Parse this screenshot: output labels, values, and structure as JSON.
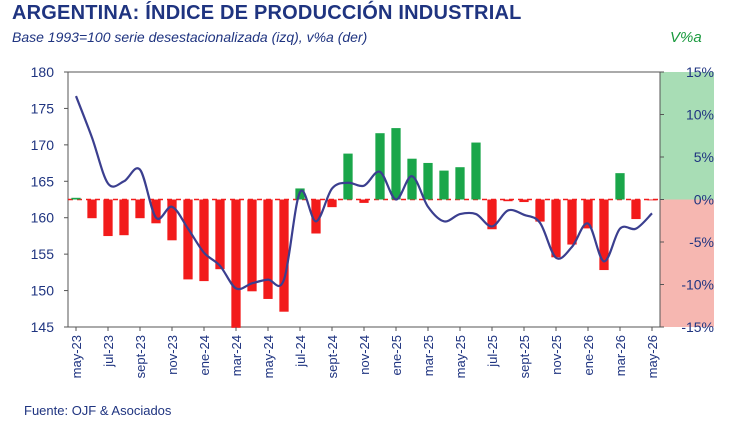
{
  "header": {
    "title": "ARGENTINA: ÍNDICE DE PRODUCCIÓN INDUSTRIAL",
    "subtitle": "Base 1993=100 serie desestacionalizada (izq), v%a (der)",
    "right_axis_label": "V%a"
  },
  "footer": {
    "source": "Fuente: OJF & Asociados"
  },
  "colors": {
    "text": "#1f3480",
    "line": "#3b3f8f",
    "bar_positive": "#1aa64a",
    "bar_negative": "#f21b1b",
    "band_positive": "#a8ddb5",
    "band_negative": "#f6b7b1"
  },
  "chart_data": {
    "type": "bar+line",
    "x_tick_labels": [
      "may-23",
      "jul-23",
      "sept-23",
      "nov-23",
      "ene-24",
      "mar-24",
      "may-24",
      "jul-24",
      "sept-24",
      "nov-24",
      "ene-25",
      "mar-25",
      "may-25",
      "jul-25",
      "sept-25",
      "nov-25",
      "ene-26",
      "mar-26",
      "may-26"
    ],
    "months": [
      "may-23",
      "jun-23",
      "jul-23",
      "ago-23",
      "sept-23",
      "oct-23",
      "nov-23",
      "dic-23",
      "ene-24",
      "feb-24",
      "mar-24",
      "abr-24",
      "may-24",
      "jun-24",
      "jul-24",
      "ago-24",
      "sept-24",
      "oct-24",
      "nov-24",
      "dic-24",
      "ene-25",
      "feb-25",
      "mar-25",
      "abr-25",
      "may-25",
      "jun-25",
      "jul-25",
      "ago-25",
      "sept-25",
      "oct-25",
      "nov-25",
      "dic-25",
      "ene-26",
      "feb-26",
      "mar-26",
      "abr-26",
      "may-26"
    ],
    "left_axis": {
      "min": 145,
      "max": 180,
      "ticks": [
        145,
        150,
        155,
        160,
        165,
        170,
        175,
        180
      ]
    },
    "right_axis": {
      "min": -15,
      "max": 15,
      "ticks": [
        "-15%",
        "-10%",
        "-5%",
        "0%",
        "5%",
        "10%",
        "15%"
      ],
      "tick_values": [
        -15,
        -10,
        -5,
        0,
        5,
        10,
        15
      ]
    },
    "series": [
      {
        "type": "bar",
        "axis": "right",
        "values": [
          0.2,
          -2.2,
          -4.3,
          -4.2,
          -2.2,
          -2.8,
          -4.8,
          -9.4,
          -9.6,
          -8.2,
          -15.1,
          -10.8,
          -11.7,
          -13.2,
          1.3,
          -4.0,
          -0.9,
          5.4,
          -0.4,
          7.8,
          8.4,
          4.8,
          4.3,
          3.4,
          3.8,
          6.7,
          -3.5,
          -0.2,
          -0.3,
          -2.6,
          -6.8,
          -5.3,
          -3.4,
          -8.3,
          3.1,
          -2.3,
          -0.1
        ]
      },
      {
        "type": "line",
        "axis": "left",
        "values": [
          176.7,
          171.0,
          164.7,
          165.0,
          166.6,
          160.0,
          161.5,
          158.5,
          155.2,
          153.4,
          150.3,
          151.0,
          151.5,
          151.5,
          163.5,
          159.5,
          164.0,
          164.8,
          164.4,
          166.3,
          162.5,
          165.7,
          161.5,
          159.5,
          160.5,
          160.5,
          158.8,
          161.0,
          160.4,
          159.3,
          154.5,
          156.0,
          159.2,
          154.0,
          158.5,
          158.5,
          160.6
        ]
      }
    ],
    "reference_lines": {
      "zero_dashed": true
    },
    "shaded_bands": [
      "right-axis positive zone green",
      "right-axis negative zone red"
    ]
  }
}
